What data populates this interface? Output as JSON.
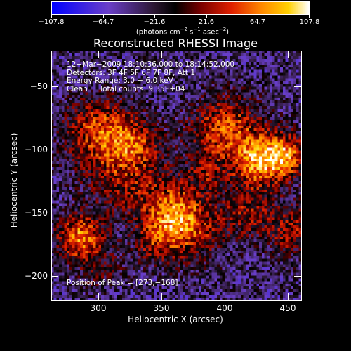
{
  "colorbar": {
    "ticks": [
      "−107.8",
      "−64.7",
      "−21.6",
      "21.6",
      "64.7",
      "107.8"
    ],
    "units_prefix": "(photons cm",
    "units_sup1": "−2",
    "units_mid1": " s",
    "units_sup2": "−1",
    "units_mid2": " asec",
    "units_sup3": "−2",
    "units_suffix": ")"
  },
  "plot": {
    "title": "Reconstructed RHESSI Image",
    "xlabel": "Heliocentric X (arcsec)",
    "ylabel": "Heliocentric Y (arcsec)",
    "xticks": [
      "300",
      "350",
      "400",
      "450"
    ],
    "yticks": [
      "−50",
      "−100",
      "−150",
      "−200"
    ],
    "info": [
      "12−Mar−2009 18:10:36.000 to 18:14:52.000",
      "Detectors: 3F 4F 5F 6F 7F 8F, Att 1",
      "Energy Range: 3.0 − 6.0 keV",
      "Clean     Total counts: 9.35E+04"
    ],
    "peak_label": "Position of Peak = [273,−168]"
  },
  "chart_data": {
    "type": "heatmap",
    "title": "Reconstructed RHESSI Image",
    "xlabel": "Heliocentric X (arcsec)",
    "ylabel": "Heliocentric Y (arcsec)",
    "xlim": [
      263,
      452
    ],
    "ylim": [
      -220,
      -22
    ],
    "zlim": [
      -107.8,
      107.8
    ],
    "xticks": [
      300,
      350,
      400,
      450
    ],
    "yticks": [
      -50,
      -100,
      -150,
      -200
    ],
    "colormap": [
      "#0000ff",
      "#6a3fc8",
      "#2a1630",
      "#000000",
      "#7a0000",
      "#e02000",
      "#ff8c00",
      "#ffd000",
      "#ffffff"
    ],
    "peak": [
      273,
      -168
    ],
    "blobs": [
      [
        285,
        -170,
        12,
        100
      ],
      [
        300,
        -85,
        18,
        75
      ],
      [
        320,
        -120,
        22,
        55
      ],
      [
        355,
        -150,
        16,
        70
      ],
      [
        365,
        -165,
        18,
        60
      ],
      [
        395,
        -85,
        18,
        80
      ],
      [
        420,
        -110,
        14,
        95
      ],
      [
        440,
        -105,
        12,
        85
      ],
      [
        445,
        -165,
        14,
        55
      ],
      [
        340,
        -175,
        10,
        35
      ],
      [
        300,
        -195,
        12,
        30
      ],
      [
        410,
        -150,
        14,
        50
      ],
      [
        380,
        -120,
        10,
        40
      ],
      [
        325,
        -95,
        12,
        45
      ]
    ]
  }
}
